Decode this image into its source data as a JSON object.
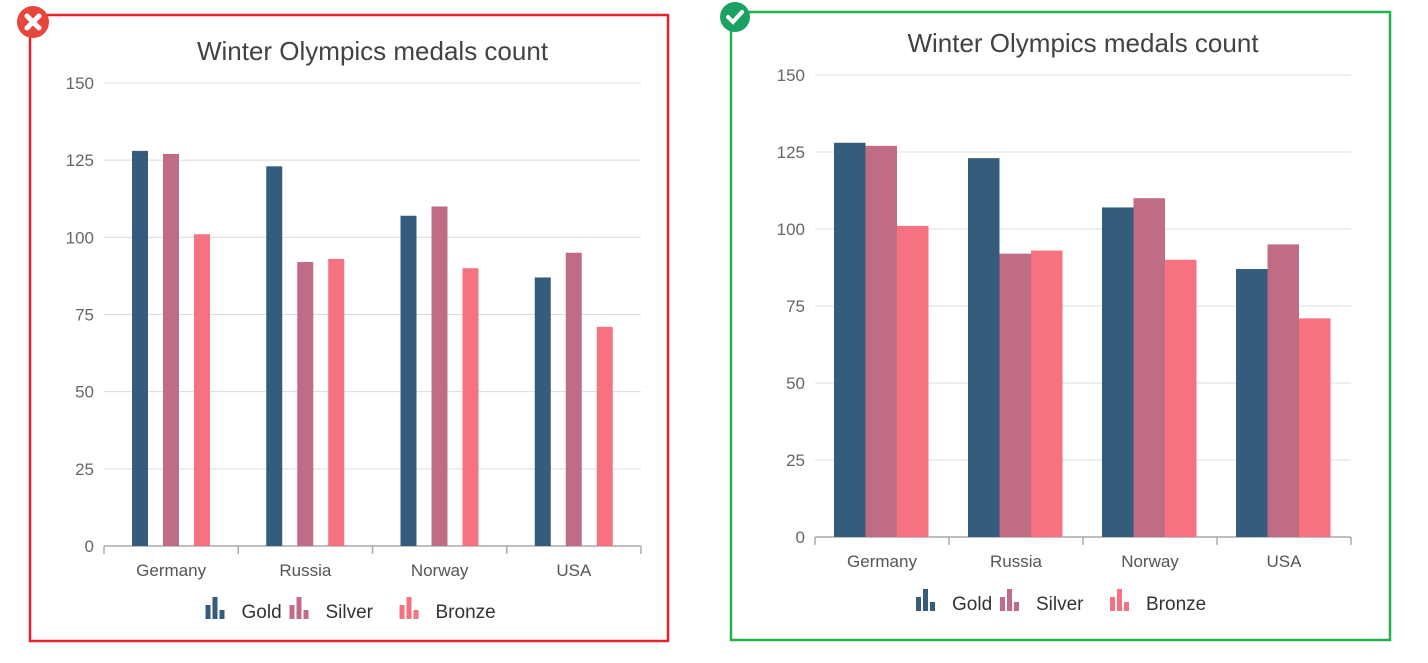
{
  "chart_data": [
    {
      "type": "bar",
      "status": "incorrect",
      "title": "Winter Olympics medals count",
      "categories": [
        "Germany",
        "Russia",
        "Norway",
        "USA"
      ],
      "series": [
        {
          "name": "Gold",
          "values": [
            128,
            123,
            107,
            87
          ],
          "color": "#355c7d"
        },
        {
          "name": "Silver",
          "values": [
            127,
            92,
            110,
            95
          ],
          "color": "#c06c84"
        },
        {
          "name": "Bronze",
          "values": [
            101,
            93,
            90,
            71
          ],
          "color": "#f67280"
        }
      ],
      "yticks": [
        0,
        25,
        50,
        75,
        100,
        125,
        150
      ],
      "ylim": [
        0,
        150
      ],
      "grid": true,
      "legend": "bottom",
      "bar_style": "narrow-separated",
      "border_color": "#e8202a"
    },
    {
      "type": "bar",
      "status": "correct",
      "title": "Winter Olympics medals count",
      "categories": [
        "Germany",
        "Russia",
        "Norway",
        "USA"
      ],
      "series": [
        {
          "name": "Gold",
          "values": [
            128,
            123,
            107,
            87
          ],
          "color": "#355c7d"
        },
        {
          "name": "Silver",
          "values": [
            127,
            92,
            110,
            95
          ],
          "color": "#c06c84"
        },
        {
          "name": "Bronze",
          "values": [
            101,
            93,
            90,
            71
          ],
          "color": "#f67280"
        }
      ],
      "yticks": [
        0,
        25,
        50,
        75,
        100,
        125,
        150
      ],
      "ylim": [
        0,
        150
      ],
      "grid": true,
      "legend": "bottom",
      "bar_style": "grouped-touching",
      "border_color": "#22b14c"
    }
  ],
  "icons": {
    "incorrect": "cross-circle-icon",
    "correct": "check-circle-icon"
  }
}
